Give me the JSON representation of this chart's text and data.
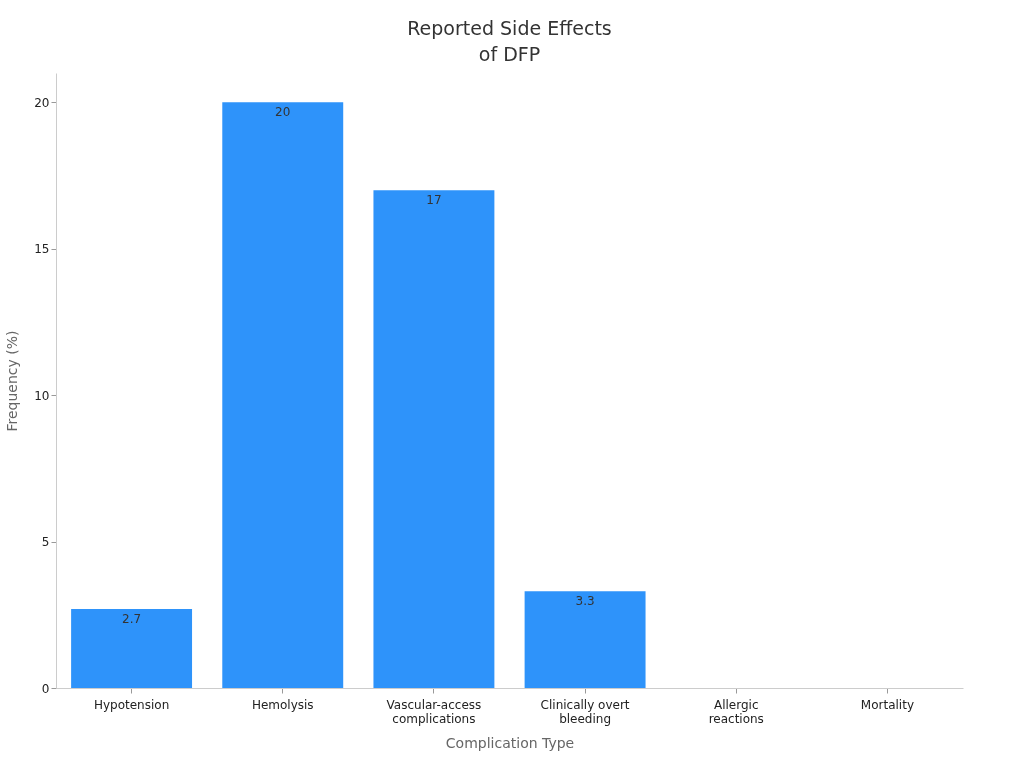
{
  "chart_data": {
    "type": "bar",
    "title": "Reported Side Effects of DFP",
    "xlabel": "Complication Type",
    "ylabel": "Frequency (%)",
    "categories": [
      "Hypotension",
      "Hemolysis",
      "Vascular-access complications",
      "Clinically overt bleeding",
      "Allergic reactions",
      "Mortality"
    ],
    "values": [
      2.7,
      20,
      17,
      3.3,
      null,
      null
    ],
    "value_labels": [
      "2.7",
      "20",
      "17",
      "3.3",
      null,
      null
    ],
    "color": "#2e93fa",
    "ylim": [
      0,
      21
    ],
    "yticks": [
      0,
      5,
      10,
      15,
      20
    ],
    "grid": false
  }
}
